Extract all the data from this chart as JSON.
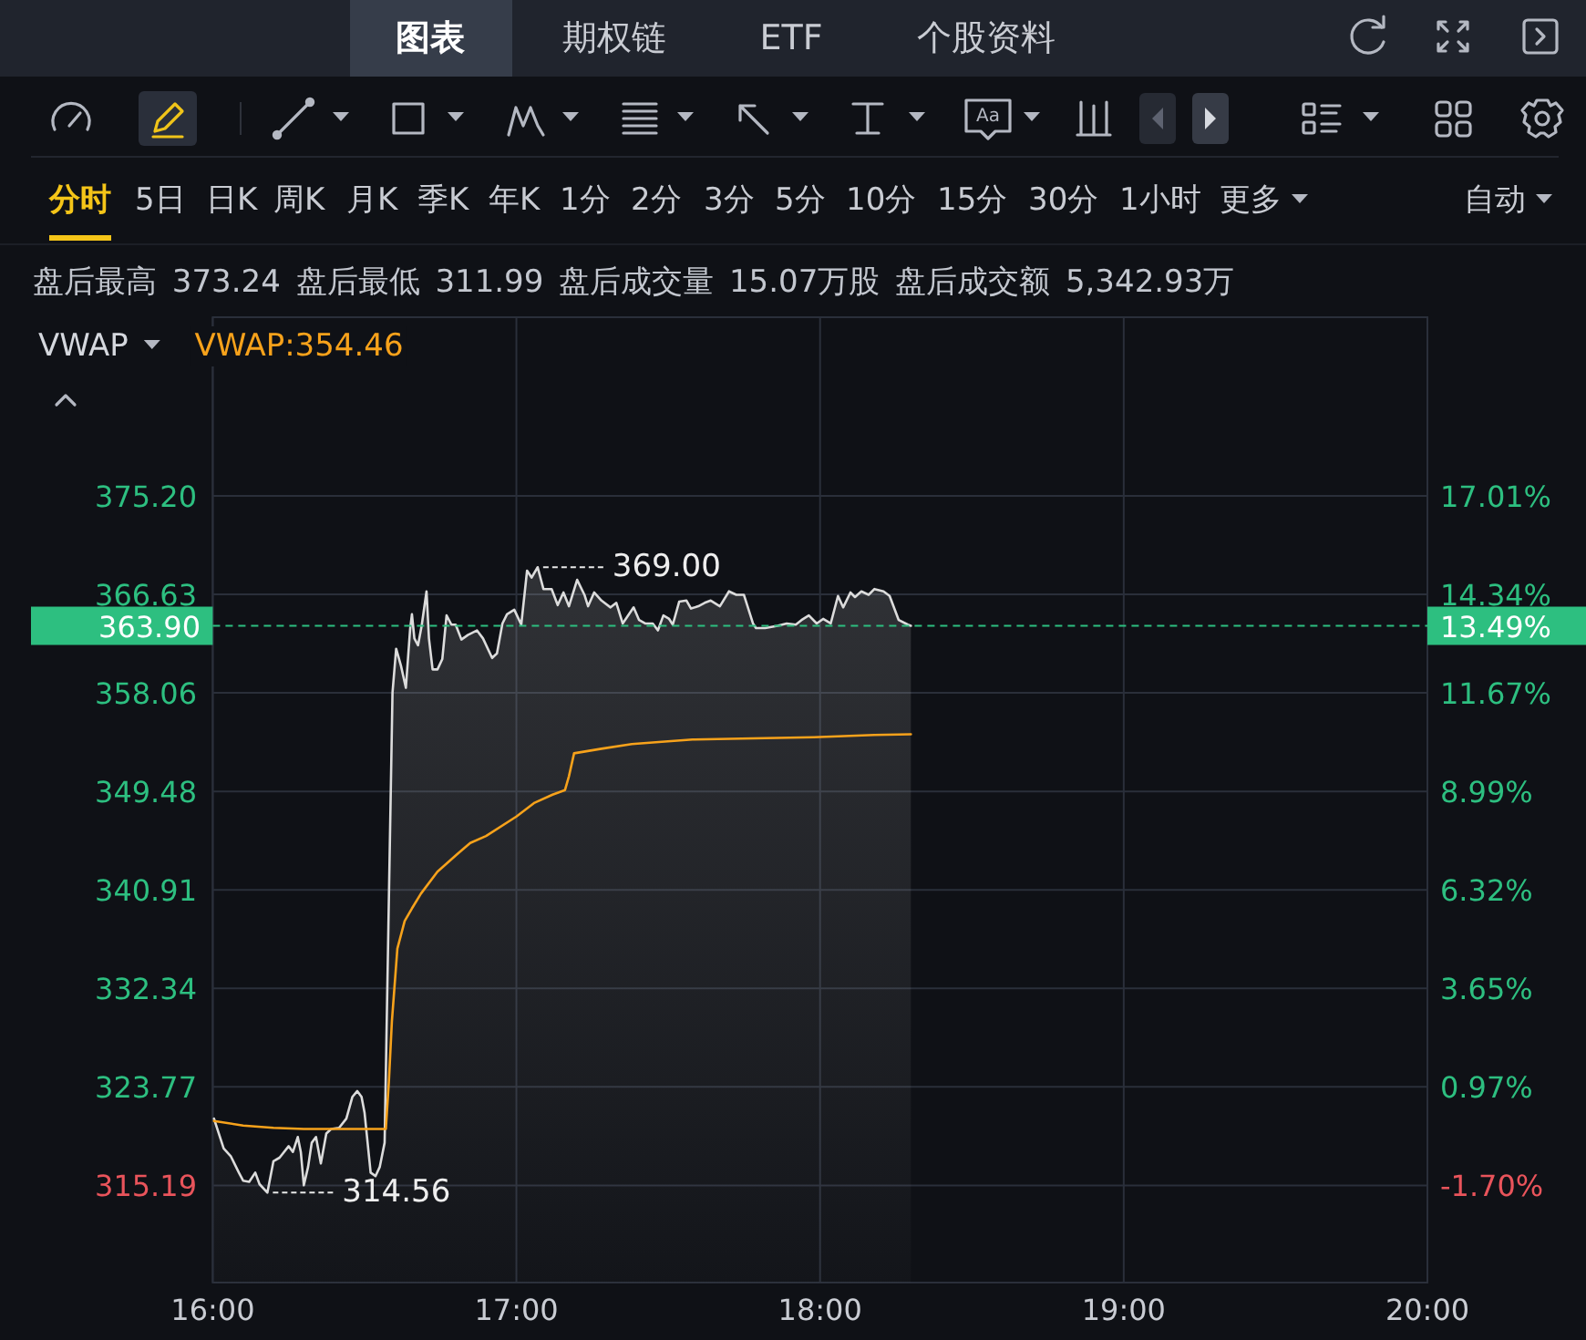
{
  "chart_data": {
    "type": "area",
    "subtitle": "盘后最高 373.24 盘后最低 311.99 盘后成交量 15.07万股 盘后成交额 5,342.93万",
    "annotations": [
      "图表",
      "期权链",
      "ETF",
      "个股资料",
      "分时",
      "5日",
      "日K",
      "周K",
      "月K",
      "季K",
      "年K",
      "1分",
      "2分",
      "3分",
      "5分",
      "10分",
      "15分",
      "30分",
      "1小时",
      "更多",
      "自动",
      "Aa",
      "VWAP",
      "13.49%",
      {
        "text": "369.00",
        "x": 17.07,
        "y": 369.0
      },
      {
        "text": "314.56",
        "x": 16.18,
        "y": 314.56
      }
    ],
    "xlim": [
      16,
      20
    ],
    "xticks": [
      {
        "value": 16,
        "label": "16:00"
      },
      {
        "value": 17,
        "label": "17:00"
      },
      {
        "value": 18,
        "label": "18:00"
      },
      {
        "value": 19,
        "label": "19:00"
      },
      {
        "value": 20,
        "label": "20:00"
      }
    ],
    "ylim": [
      306.73,
      390.76
    ],
    "yticks": [
      {
        "value": 375.2,
        "label": "375.20"
      },
      366.63,
      358.06,
      349.48,
      340.91,
      332.34,
      323.77,
      315.19
    ],
    "y2lim": [
      -4.34,
      21.86
    ],
    "y2ticks": [
      {
        "value": 17.01,
        "label": "17.01%"
      },
      {
        "value": 14.34,
        "label": "14.34%"
      },
      {
        "value": 11.67,
        "label": "11.67%"
      },
      {
        "value": 8.99,
        "label": "8.99%"
      },
      {
        "value": 6.32,
        "label": "6.32%"
      },
      {
        "value": 3.65,
        "label": "3.65%"
      },
      {
        "value": 0.97,
        "label": "0.97%"
      },
      {
        "value": -1.7,
        "label": "-1.70%"
      }
    ],
    "grid": true,
    "legend": "top left",
    "series": [
      {
        "color": "#dcdcdc",
        "x": [
          16.004,
          16.036,
          16.06,
          16.086,
          16.1,
          16.12,
          16.14,
          16.154,
          16.18,
          16.2,
          16.22,
          16.25,
          16.264,
          16.28,
          16.29,
          16.3,
          16.314,
          16.326,
          16.34,
          16.356,
          16.374,
          16.39,
          16.416,
          16.44,
          16.46,
          16.476,
          16.49,
          16.5,
          16.52,
          16.536,
          16.55,
          16.566,
          16.592,
          16.604,
          16.62,
          16.636,
          16.65,
          16.656,
          16.664,
          16.676,
          16.688,
          16.704,
          16.712,
          16.724,
          16.74,
          16.756,
          16.77,
          16.786,
          16.8,
          16.819,
          16.84,
          16.87,
          16.89,
          16.92,
          16.936,
          16.954,
          16.969,
          16.993,
          17.016,
          17.035,
          17.05,
          17.07,
          17.089,
          17.116,
          17.136,
          17.155,
          17.173,
          17.2,
          17.224,
          17.236,
          17.256,
          17.28,
          17.31,
          17.329,
          17.35,
          17.386,
          17.404,
          17.424,
          17.449,
          17.466,
          17.484,
          17.503,
          17.515,
          17.536,
          17.56,
          17.575,
          17.599,
          17.62,
          17.64,
          17.67,
          17.7,
          17.724,
          17.749,
          17.779,
          17.789,
          17.819,
          17.86,
          17.89,
          17.92,
          17.939,
          17.963,
          17.989,
          18.01,
          18.035,
          18.059,
          18.076,
          18.1,
          18.115,
          18.136,
          18.16,
          18.179,
          18.209,
          18.229,
          18.259,
          18.289,
          18.299
        ],
        "values": [
          321.0,
          318.4,
          317.7,
          316.3,
          315.6,
          315.5,
          316.3,
          315.3,
          314.56,
          317.3,
          317.6,
          318.6,
          318.1,
          319.4,
          318.1,
          315.2,
          316.8,
          318.9,
          319.4,
          317.1,
          319.7,
          320.1,
          320.2,
          321.0,
          322.9,
          323.4,
          322.9,
          321.5,
          316.3,
          316.0,
          316.8,
          318.9,
          358.1,
          361.9,
          360.4,
          358.5,
          363.6,
          364.9,
          362.8,
          362.2,
          363.9,
          366.9,
          362.8,
          360.1,
          360.1,
          361.0,
          364.8,
          364.0,
          364.0,
          362.7,
          363.1,
          363.5,
          362.8,
          361.1,
          361.5,
          364.1,
          364.9,
          365.3,
          364.0,
          368.7,
          368.1,
          369.0,
          367.1,
          367.1,
          365.7,
          366.8,
          365.6,
          367.9,
          366.6,
          365.6,
          366.8,
          366.1,
          365.5,
          365.9,
          364.1,
          365.5,
          364.4,
          364.1,
          364.1,
          363.5,
          364.8,
          364.5,
          364.0,
          366.0,
          366.1,
          365.4,
          365.6,
          365.9,
          366.1,
          365.6,
          366.9,
          366.6,
          366.6,
          364.1,
          363.7,
          363.7,
          363.9,
          364.1,
          364.0,
          364.4,
          364.8,
          364.1,
          364.5,
          364.1,
          366.5,
          365.5,
          366.8,
          366.4,
          366.9,
          366.6,
          367.1,
          366.9,
          366.5,
          364.4,
          364.0,
          363.9
        ]
      },
      {
        "name": "VWAP:354.46",
        "type": "line",
        "color": "#f7a21b",
        "x": [
          16.004,
          16.1,
          16.2,
          16.3,
          16.4,
          16.5,
          16.57,
          16.58,
          16.59,
          16.608,
          16.632,
          16.656,
          16.686,
          16.74,
          16.8,
          16.848,
          16.9,
          17.0,
          17.06,
          17.119,
          17.16,
          17.173,
          17.19,
          17.28,
          17.38,
          17.479,
          17.58,
          17.779,
          17.98,
          18.179,
          18.299
        ],
        "values": [
          320.8,
          320.4,
          320.2,
          320.1,
          320.1,
          320.1,
          320.1,
          324.2,
          329.5,
          335.8,
          338.2,
          339.3,
          340.6,
          342.5,
          343.9,
          345.0,
          345.6,
          347.3,
          348.5,
          349.2,
          349.6,
          350.8,
          352.8,
          353.2,
          353.6,
          353.8,
          354.0,
          354.1,
          354.2,
          354.4,
          354.46
        ]
      }
    ],
    "ref_lines": [
      {
        "axis": "y",
        "value": 363.9,
        "label": "363.90",
        "color": "#2dbf80",
        "line_style": "dashed"
      }
    ]
  }
}
